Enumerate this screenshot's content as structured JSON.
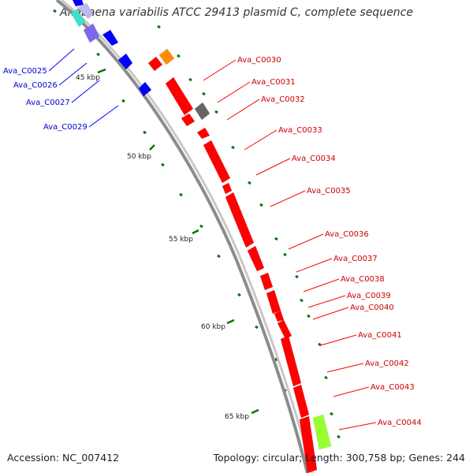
{
  "title": "Anabaena variabilis ATCC 29413 plasmid C, complete sequence",
  "accession": "Accession: NC_007412",
  "topology": "Topology: circular; Length: 300,758 bp; Genes: 244",
  "scale": {
    "labels": [
      "45 kbp",
      "50 kbp",
      "55 kbp",
      "60 kbp",
      "65 kbp"
    ]
  },
  "colors": {
    "backbone": "#8c8c8c",
    "forward_gene": "#ff0000",
    "reverse_gene": "#0000ff",
    "reverse_label": "#0000cc",
    "forward_label": "#cc0000",
    "tick": "#007700",
    "orange_gene": "#ff8c00",
    "gray_gene": "#666666",
    "lime_gene": "#99ff33",
    "cyan_gene": "#40e0d0",
    "purple_gene": "#7b68ee"
  },
  "genes_reverse": [
    "Ava_C0025",
    "Ava_C0026",
    "Ava_C0027",
    "Ava_C0029"
  ],
  "genes_forward": [
    "Ava_C0030",
    "Ava_C0031",
    "Ava_C0032",
    "Ava_C0033",
    "Ava_C0034",
    "Ava_C0035",
    "Ava_C0036",
    "Ava_C0037",
    "Ava_C0038",
    "Ava_C0039",
    "Ava_C0040",
    "Ava_C0041",
    "Ava_C0042",
    "Ava_C0043",
    "Ava_C0044"
  ]
}
